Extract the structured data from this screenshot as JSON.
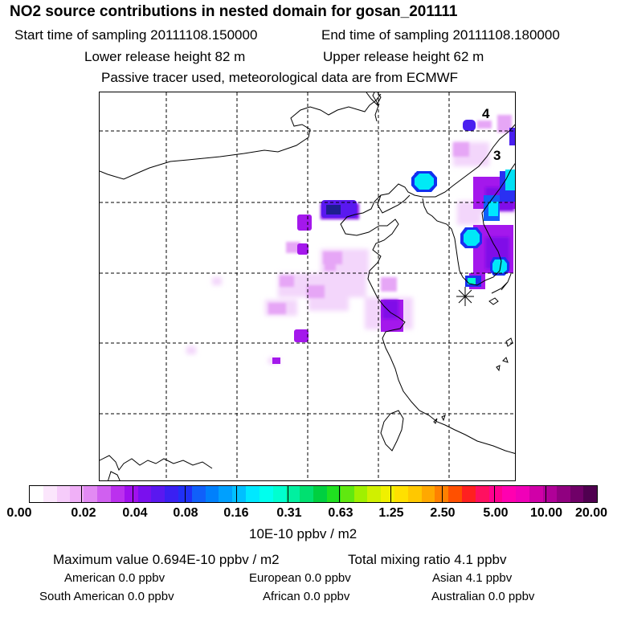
{
  "header": {
    "title": "NO2 source contributions in nested domain for gosan_201111",
    "start_label": "Start time of sampling 20111108.150000",
    "end_label": "End time of sampling 20111108.180000",
    "lower_label": "Lower release height   82 m",
    "upper_label": "Upper release height   62 m",
    "note": "Passive tracer used, meteorological data are from ECMWF"
  },
  "map": {
    "markers": [
      "4",
      "3"
    ]
  },
  "colorbar": {
    "ticks": [
      "0.00",
      "0.02",
      "0.04",
      "0.08",
      "0.16",
      "0.31",
      "0.63",
      "1.25",
      "2.50",
      "5.00",
      "10.00",
      "20.00"
    ],
    "unit": "10E-10 ppbv / m2",
    "colors": [
      "#ffffff",
      "#fbe6fc",
      "#f6ccfa",
      "#f0b0f7",
      "#e28af3",
      "#d060f0",
      "#bb30ee",
      "#a010ee",
      "#7a10ee",
      "#5a18f0",
      "#3a20f2",
      "#2030f6",
      "#1060fa",
      "#0080fc",
      "#00a0fe",
      "#00c0ff",
      "#00e8ff",
      "#00ffee",
      "#00ffd0",
      "#00f0a0",
      "#00e070",
      "#00d040",
      "#20e020",
      "#60e810",
      "#a0f000",
      "#d0f000",
      "#f0f000",
      "#ffe000",
      "#ffc800",
      "#ffa800",
      "#ff8000",
      "#ff5000",
      "#ff2020",
      "#ff1060",
      "#ff0090",
      "#ff00b0",
      "#f000b8",
      "#d000a8",
      "#b00098",
      "#900080",
      "#700068",
      "#500050"
    ]
  },
  "summary": {
    "max_line": "Maximum value  0.694E-10 ppbv / m2",
    "total_line": "Total mixing ratio       4.1 ppbv",
    "american": "American          0.0 ppbv",
    "european": "European        0.0 ppbv",
    "asian": "Asian        4.1 ppbv",
    "south_american": "South American         0.0 ppbv",
    "african": "African        0.0 ppbv",
    "australian": "Australian          0.0 ppbv"
  }
}
